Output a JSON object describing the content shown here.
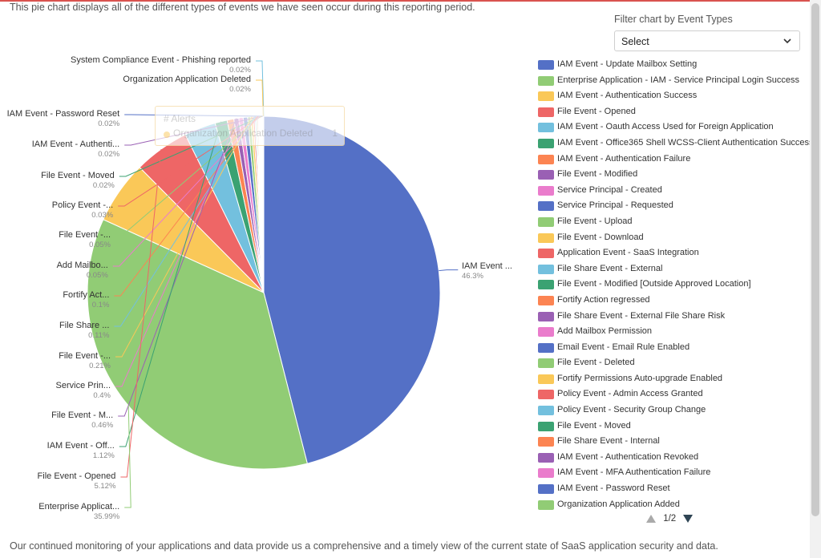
{
  "page": {
    "intro": "This pie chart displays all of the different types of events we have seen occur during this reporting period.",
    "footer": "Our continued monitoring of your applications and data provide us a comprehensive and a timely view of the current state of SaaS application security and data."
  },
  "filter": {
    "label": "Filter chart by Event Types",
    "value": "Select"
  },
  "tooltip": {
    "title": "# Alerts",
    "name": "Organization Application Deleted",
    "value": "1"
  },
  "pager": {
    "text": "1/2"
  },
  "colors": [
    "#5470c6",
    "#91cc75",
    "#fac858",
    "#ee6666",
    "#73c0de",
    "#3ba272",
    "#fc8452",
    "#9a60b4",
    "#ea7ccc"
  ],
  "legend": [
    "IAM Event - Update Mailbox Setting",
    "Enterprise Application - IAM - Service Principal Login Success",
    "IAM Event - Authentication Success",
    "File Event - Opened",
    "IAM Event - Oauth Access Used for Foreign Application",
    "IAM Event - Office365 Shell WCSS-Client Authentication Success",
    "IAM Event - Authentication Failure",
    "File Event - Modified",
    "Service Principal - Created",
    "Service Principal - Requested",
    "File Event - Upload",
    "File Event - Download",
    "Application Event - SaaS Integration",
    "File Share Event - External",
    "File Event - Modified [Outside Approved Location]",
    "Fortify Action regressed",
    "File Share Event - External File Share Risk",
    "Add Mailbox Permission",
    "Email Event - Email Rule Enabled",
    "File Event - Deleted",
    "Fortify Permissions Auto-upgrade Enabled",
    "Policy Event - Admin Access Granted",
    "Policy Event - Security Group Change",
    "File Event - Moved",
    "File Share Event - Internal",
    "IAM Event - Authentication Revoked",
    "IAM Event - MFA Authentication Failure",
    "IAM Event - Password Reset",
    "Organization Application Added"
  ],
  "chart_data": {
    "type": "pie",
    "title": "",
    "series_name": "# Alerts",
    "slices": [
      {
        "label": "IAM Event ...",
        "percent": "46.3%",
        "value": 46.3
      },
      {
        "label": "Enterprise Applicat...",
        "percent": "35.99%",
        "value": 35.99
      },
      {
        "label": "",
        "percent": "",
        "value": 5.8
      },
      {
        "label": "File Event - Opened",
        "percent": "5.12%",
        "value": 5.12
      },
      {
        "label": "",
        "percent": "",
        "value": 2.9
      },
      {
        "label": "IAM Event - Off...",
        "percent": "1.12%",
        "value": 1.12
      },
      {
        "label": "",
        "percent": "",
        "value": 0.62
      },
      {
        "label": "File Event - M...",
        "percent": "0.46%",
        "value": 0.46
      },
      {
        "label": "Service Prin...",
        "percent": "0.4%",
        "value": 0.4
      },
      {
        "label": "",
        "percent": "",
        "value": 0.4
      },
      {
        "label": "",
        "percent": "",
        "value": 0.3
      },
      {
        "label": "File Event -...",
        "percent": "0.21%",
        "value": 0.21
      },
      {
        "label": "",
        "percent": "",
        "value": 0.15
      },
      {
        "label": "File Share ...",
        "percent": "0.11%",
        "value": 0.11
      },
      {
        "label": "",
        "percent": "",
        "value": 0.1
      },
      {
        "label": "Fortify Act...",
        "percent": "0.1%",
        "value": 0.1
      },
      {
        "label": "",
        "percent": "",
        "value": 0.08
      },
      {
        "label": "Add Mailbo...",
        "percent": "0.05%",
        "value": 0.05
      },
      {
        "label": "",
        "percent": "",
        "value": 0.05
      },
      {
        "label": "File Event -...",
        "percent": "0.05%",
        "value": 0.05
      },
      {
        "label": "",
        "percent": "",
        "value": 0.04
      },
      {
        "label": "Policy Event -...",
        "percent": "0.03%",
        "value": 0.03
      },
      {
        "label": "",
        "percent": "",
        "value": 0.03
      },
      {
        "label": "File Event - Moved",
        "percent": "0.02%",
        "value": 0.02
      },
      {
        "label": "",
        "percent": "",
        "value": 0.02
      },
      {
        "label": "IAM Event - Authenti...",
        "percent": "0.02%",
        "value": 0.02
      },
      {
        "label": "",
        "percent": "",
        "value": 0.02
      },
      {
        "label": "IAM Event - Password Reset",
        "percent": "0.02%",
        "value": 0.02
      },
      {
        "label": "",
        "percent": "",
        "value": 0.02
      },
      {
        "label": "Organization Application Deleted",
        "percent": "0.02%",
        "value": 0.02
      },
      {
        "label": "",
        "percent": "",
        "value": 0.02
      },
      {
        "label": "System Compliance Event - Phishing reported",
        "percent": "0.02%",
        "value": 0.02
      }
    ]
  }
}
